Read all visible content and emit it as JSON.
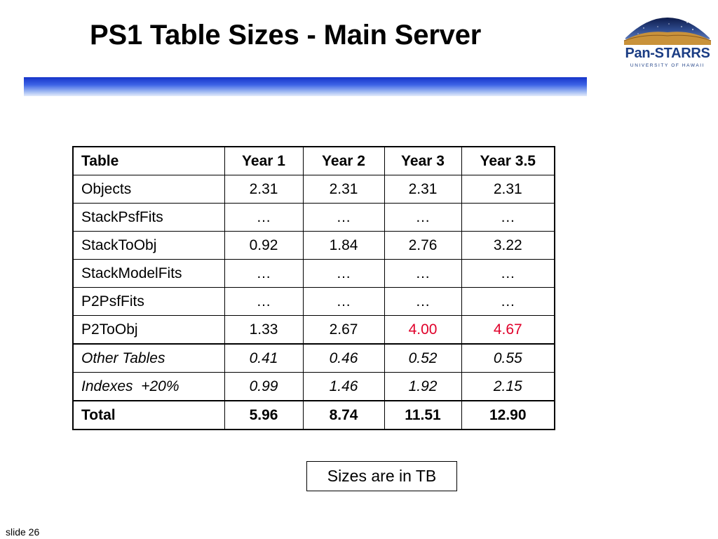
{
  "title": "PS1 Table Sizes - Main Server",
  "logo": {
    "text": "Pan-STARRS",
    "subtext": "UNIVERSITY OF HAWAII"
  },
  "table": {
    "headers": [
      "Table",
      "Year 1",
      "Year 2",
      "Year 3",
      "Year 3.5"
    ],
    "rows": [
      {
        "cells": [
          "Objects",
          "2.31",
          "2.31",
          "2.31",
          "2.31"
        ]
      },
      {
        "cells": [
          "StackPsfFits",
          "…",
          "…",
          "…",
          "…"
        ]
      },
      {
        "cells": [
          "StackToObj",
          "0.92",
          "1.84",
          "2.76",
          "3.22"
        ]
      },
      {
        "cells": [
          "StackModelFits",
          "…",
          "…",
          "…",
          "…"
        ]
      },
      {
        "cells": [
          "P2PsfFits",
          "…",
          "…",
          "…",
          "…"
        ]
      },
      {
        "cells": [
          "P2ToObj",
          "1.33",
          "2.67",
          "4.00",
          "4.67"
        ]
      },
      {
        "cells": [
          "Other Tables",
          "0.41",
          "0.46",
          "0.52",
          "0.55"
        ]
      },
      {
        "cells": [
          "Indexes  +20%",
          "0.99",
          "1.46",
          "1.92",
          "2.15"
        ]
      },
      {
        "cells": [
          "Total",
          "5.96",
          "8.74",
          "11.51",
          "12.90"
        ]
      }
    ]
  },
  "highlight_color": "#e0002a",
  "title_bar_color": "#1533c9",
  "note": "Sizes are in TB",
  "slide_label": "slide 26"
}
